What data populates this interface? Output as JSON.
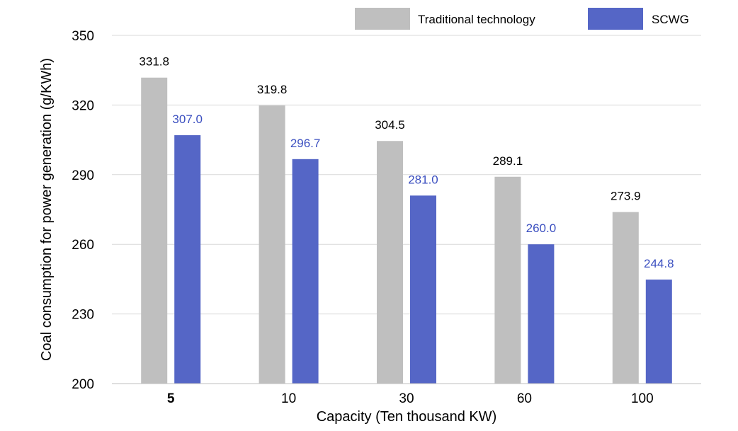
{
  "chart_data": {
    "type": "bar",
    "categories": [
      "5",
      "10",
      "30",
      "60",
      "100"
    ],
    "series": [
      {
        "name": "Traditional technology",
        "values": [
          331.8,
          319.8,
          304.5,
          289.1,
          273.9
        ],
        "data_labels": [
          "331.8",
          "319.8",
          "304.5",
          "289.1",
          "273.9"
        ],
        "color": "#bfbfbf",
        "label_color": "#000000"
      },
      {
        "name": "SCWG",
        "values": [
          307.0,
          296.7,
          281.0,
          260.0,
          244.8
        ],
        "data_labels": [
          "307.0",
          "296.7",
          "281.0",
          "260.0",
          "244.8"
        ],
        "color": "#5566c6",
        "label_color": "#3b4fc0"
      }
    ],
    "xlabel": "Capacity (Ten thousand KW)",
    "ylabel": "Coal consumption for power generation (g/KWh)",
    "ylim": [
      200,
      350
    ],
    "yticks": [
      "200",
      "230",
      "260",
      "290",
      "320",
      "350"
    ],
    "grid": true,
    "legend_position": "top-right"
  }
}
